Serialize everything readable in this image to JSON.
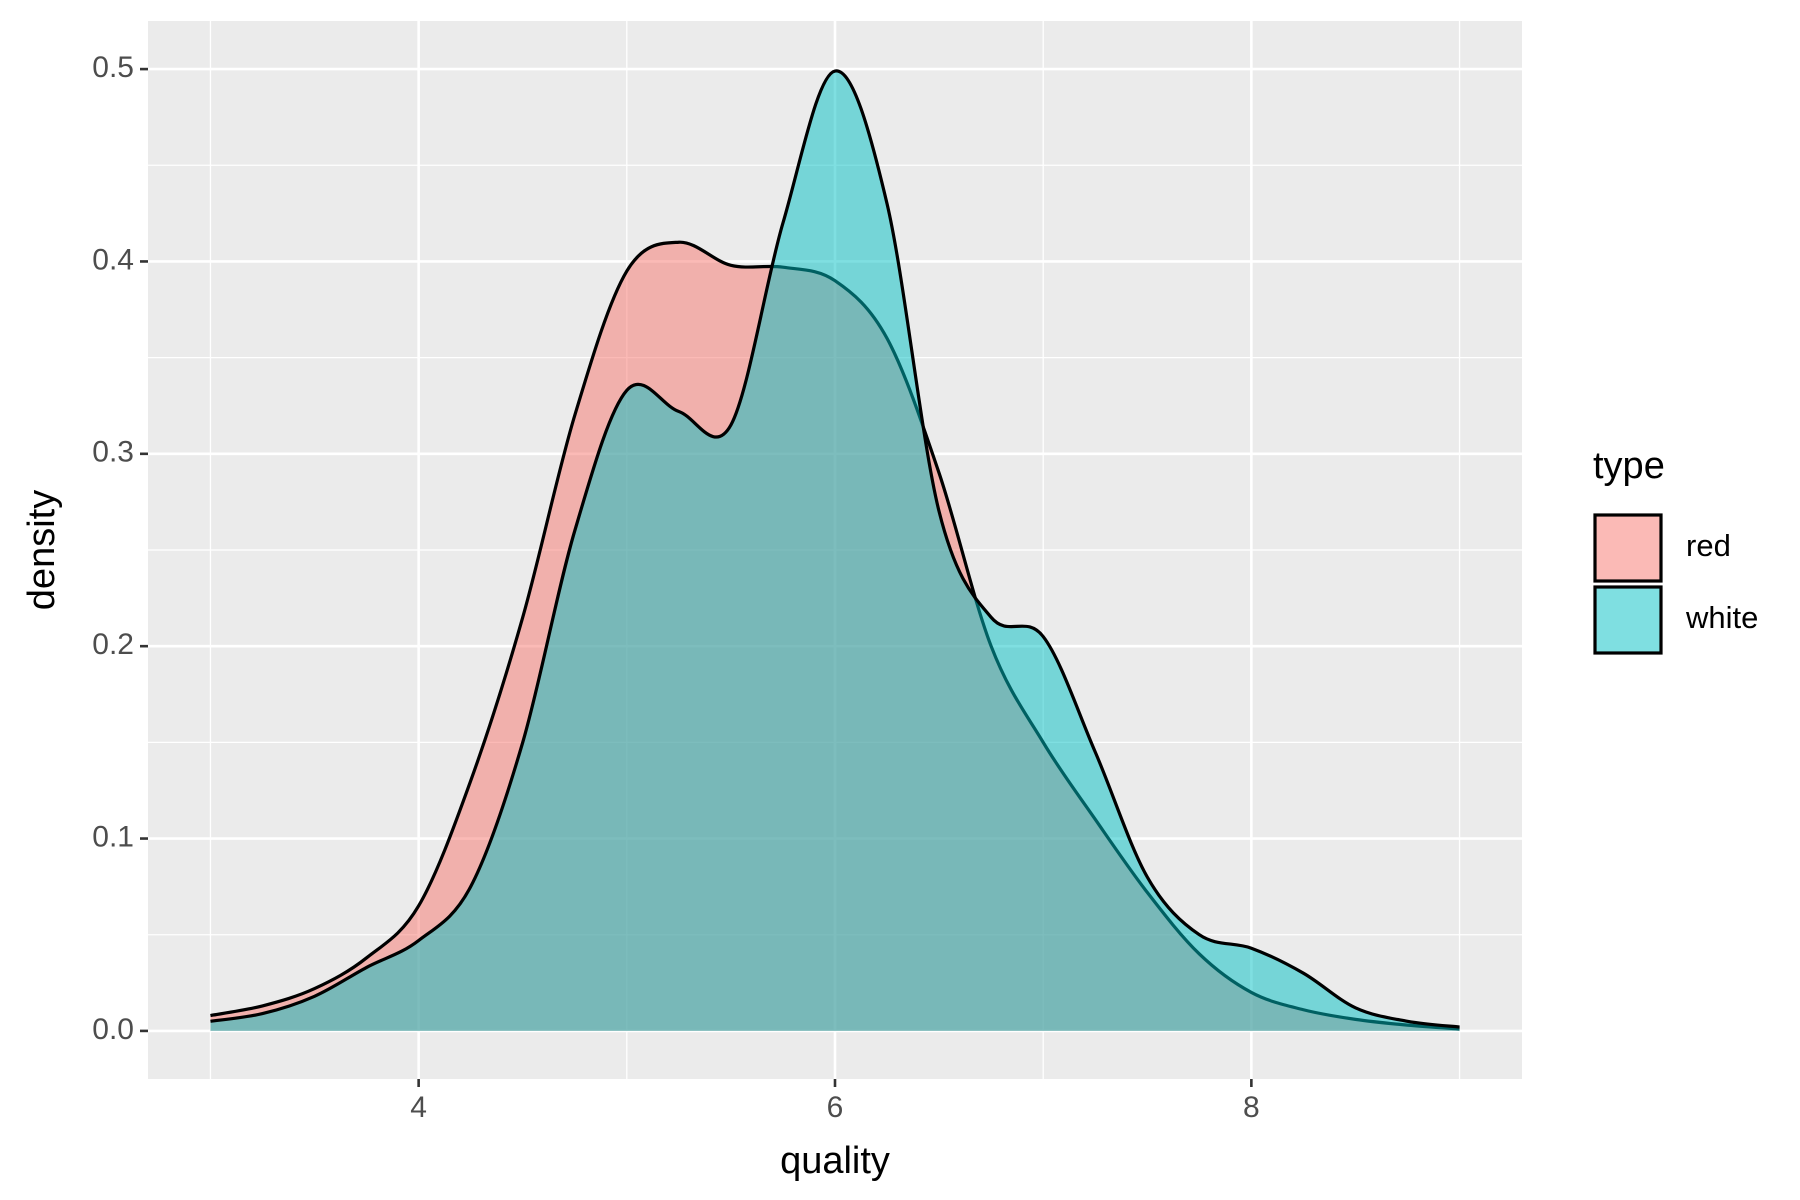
{
  "chart_data": {
    "type": "density",
    "x_label": "quality",
    "y_label": "density",
    "legend_title": "type",
    "legend_position": "right",
    "grid": true,
    "x": [
      3,
      3.25,
      3.5,
      3.75,
      4,
      4.25,
      4.5,
      4.75,
      5,
      5.25,
      5.5,
      5.75,
      6,
      6.25,
      6.5,
      6.75,
      7,
      7.25,
      7.5,
      7.75,
      8,
      8.25,
      8.5,
      8.75,
      9
    ],
    "series": [
      {
        "name": "red",
        "color": "#F8766D",
        "values": [
          0.008,
          0.013,
          0.022,
          0.038,
          0.065,
          0.13,
          0.215,
          0.32,
          0.395,
          0.41,
          0.398,
          0.397,
          0.39,
          0.36,
          0.29,
          0.2,
          0.15,
          0.11,
          0.072,
          0.04,
          0.02,
          0.011,
          0.006,
          0.003,
          0.001
        ]
      },
      {
        "name": "white",
        "color": "#00BFC4",
        "values": [
          0.005,
          0.009,
          0.018,
          0.033,
          0.047,
          0.075,
          0.15,
          0.26,
          0.333,
          0.322,
          0.315,
          0.42,
          0.499,
          0.43,
          0.27,
          0.215,
          0.205,
          0.145,
          0.08,
          0.05,
          0.043,
          0.03,
          0.012,
          0.005,
          0.002
        ]
      }
    ],
    "xlim": [
      2.7,
      9.3
    ],
    "ylim": [
      -0.025,
      0.525
    ],
    "xticks": [
      4,
      6,
      8
    ],
    "yticks": [
      {
        "value": 0,
        "label": "0.0"
      },
      0.1,
      0.2,
      0.3,
      0.4,
      0.5
    ],
    "xminor": [
      3,
      5,
      7,
      9
    ],
    "yminor": [
      0.05,
      0.15,
      0.25,
      0.35,
      0.45
    ]
  }
}
